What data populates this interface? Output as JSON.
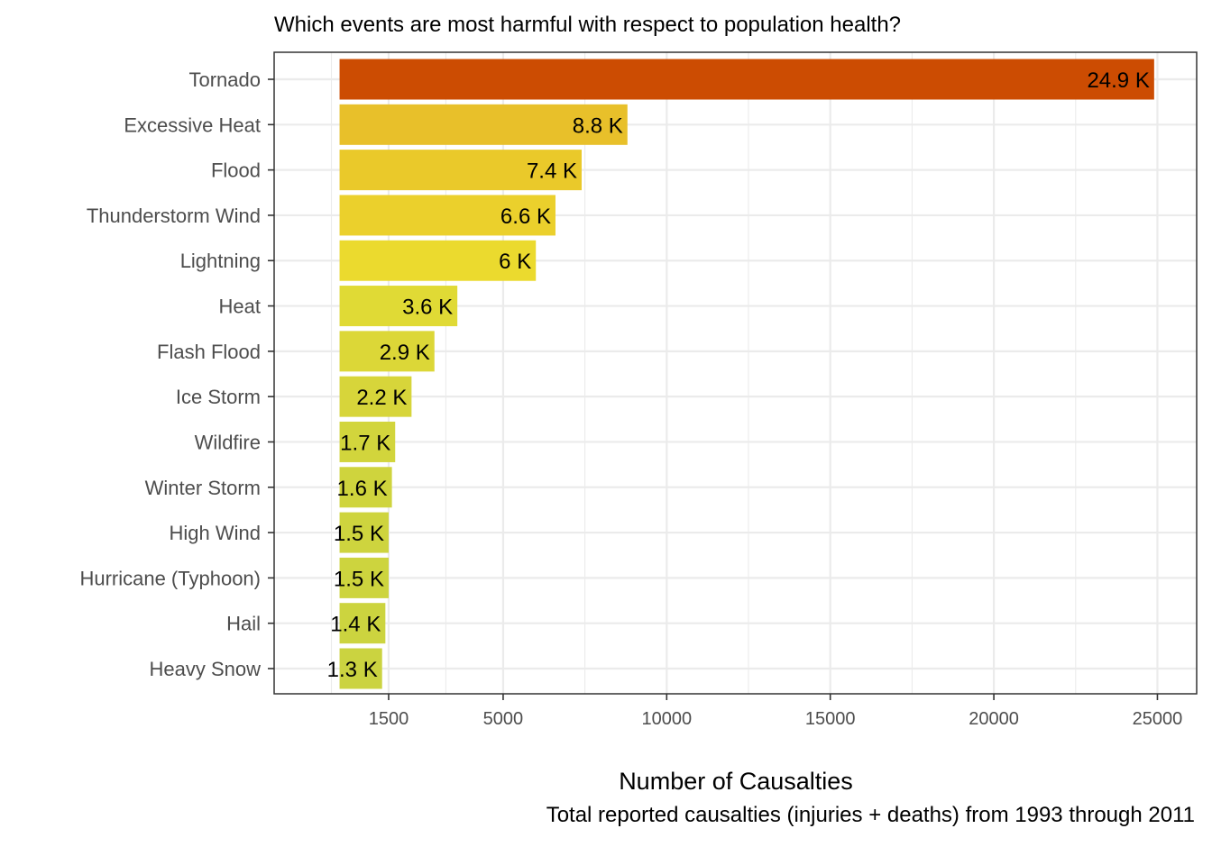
{
  "chart_data": {
    "type": "bar",
    "orientation": "horizontal",
    "title": "Which events are most harmful with respect to population health?",
    "xlabel": "Number of Causalties",
    "caption": "Total reported causalties (injuries + deaths) from 1993 through 2011",
    "ylabel": "",
    "categories": [
      "Tornado",
      "Excessive Heat",
      "Flood",
      "Thunderstorm Wind",
      "Lightning",
      "Heat",
      "Flash Flood",
      "Ice Storm",
      "Wildfire",
      "Winter Storm",
      "High Wind",
      "Hurricane (Typhoon)",
      "Hail",
      "Heavy Snow"
    ],
    "values": [
      24900,
      8800,
      7400,
      6600,
      6000,
      3600,
      2900,
      2200,
      1700,
      1600,
      1500,
      1500,
      1400,
      1300
    ],
    "value_labels": [
      "24.9 K",
      "8.8 K",
      "7.4 K",
      "6.6 K",
      "6 K",
      "3.6 K",
      "2.9 K",
      "2.2 K",
      "1.7 K",
      "1.6 K",
      "1.5 K",
      "1.5 K",
      "1.4 K",
      "1.3 K"
    ],
    "bar_colors": [
      "#cc4c02",
      "#e8c02a",
      "#eac92a",
      "#ebd02c",
      "#ebda2e",
      "#e0da35",
      "#dcd737",
      "#d7d53a",
      "#d2d53c",
      "#cfd43d",
      "#ced43e",
      "#cdd43e",
      "#ccd43f",
      "#cbd340"
    ],
    "xticks": [
      1500,
      5000,
      10000,
      15000,
      20000,
      25000
    ],
    "xtick_labels": [
      "1500",
      "5000",
      "10000",
      "15000",
      "20000",
      "25000"
    ],
    "xlim": [
      -2000,
      26200
    ],
    "bar_baseline": 0,
    "grid": true,
    "legend": "none"
  }
}
